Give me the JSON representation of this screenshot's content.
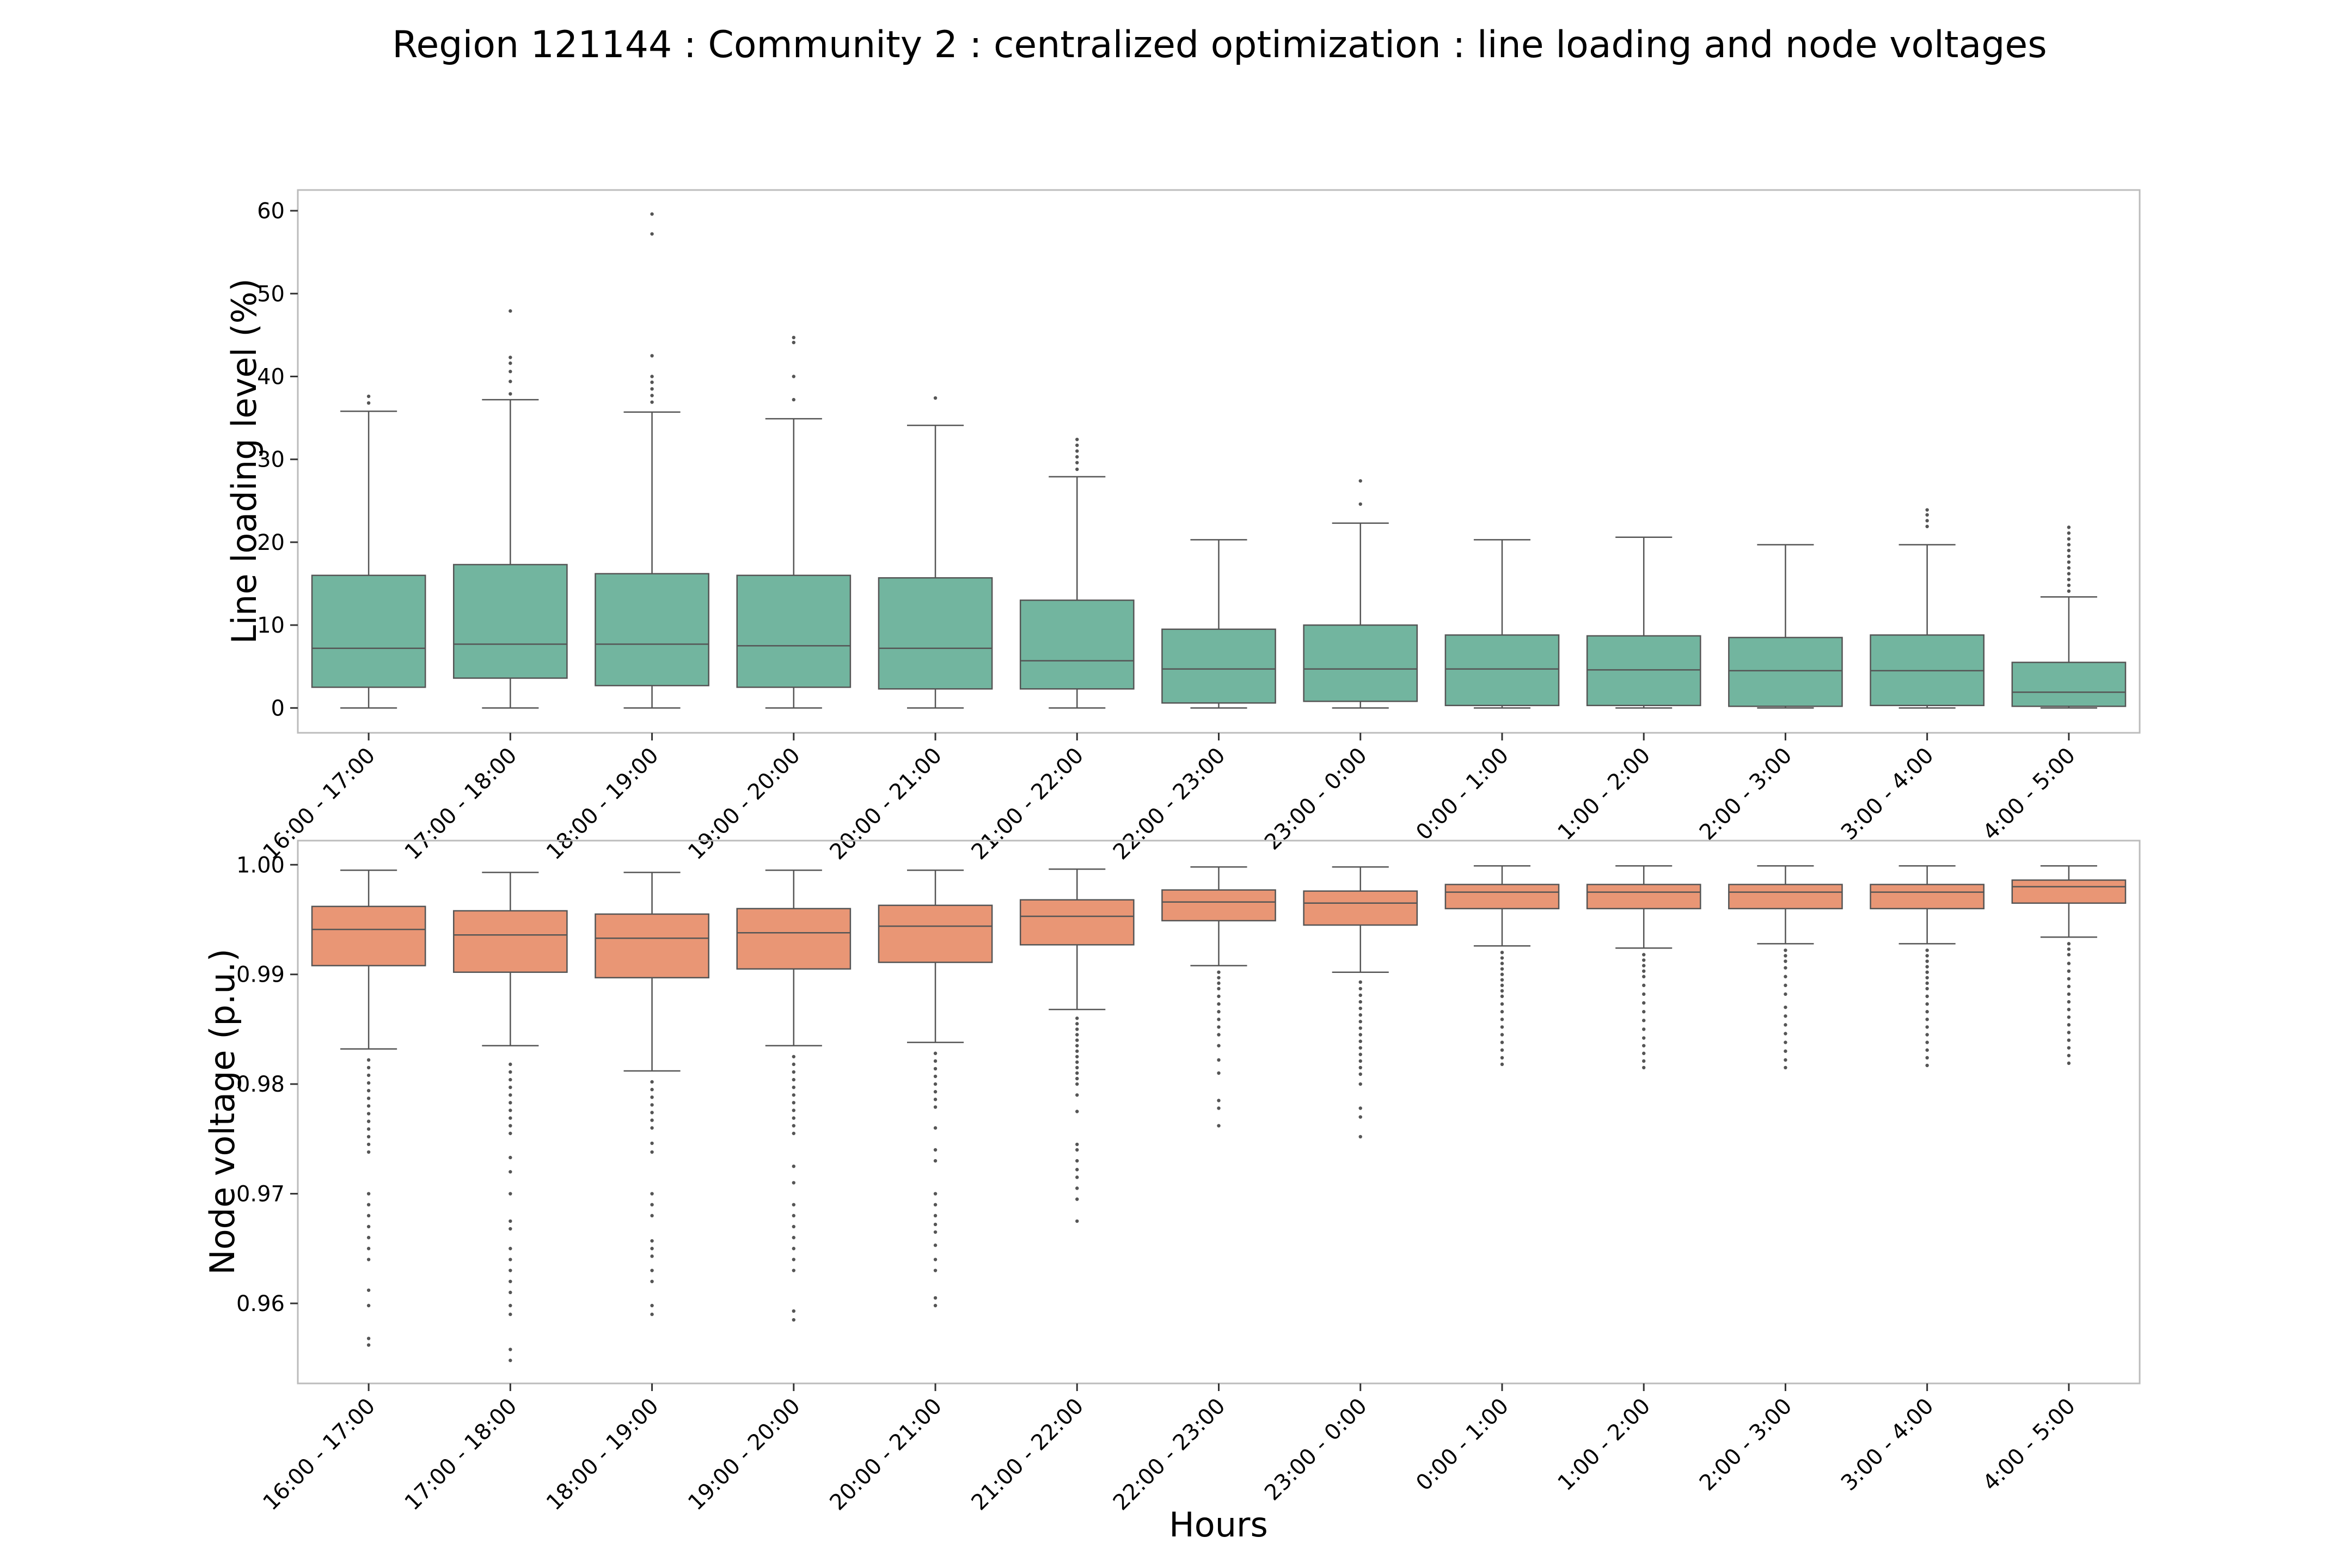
{
  "figure": {
    "title": "Region 121144 : Community 2 : centralized optimization : line loading and node voltages"
  },
  "chart_data": [
    {
      "type": "box",
      "panel": "top",
      "xlabel": "",
      "ylabel": "Line loading level (%)",
      "ylim": [
        -3,
        62.5
      ],
      "yticks": [
        0,
        10,
        20,
        30,
        40,
        50,
        60
      ],
      "ytick_labels": [
        "0",
        "10",
        "20",
        "30",
        "40",
        "50",
        "60"
      ],
      "grid": false,
      "color": "#72b59f",
      "categories": [
        "16:00 - 17:00",
        "17:00 - 18:00",
        "18:00 - 19:00",
        "19:00 - 20:00",
        "20:00 - 21:00",
        "21:00 - 22:00",
        "22:00 - 23:00",
        "23:00 - 0:00",
        "0:00 - 1:00",
        "1:00 - 2:00",
        "2:00 - 3:00",
        "3:00 - 4:00",
        "4:00 - 5:00"
      ],
      "boxes": [
        {
          "whislo": 0,
          "q1": 2.5,
          "med": 7.2,
          "q3": 16.0,
          "whishi": 35.8,
          "fliers": [
            36.8,
            37.6
          ]
        },
        {
          "whislo": 0,
          "q1": 3.6,
          "med": 7.7,
          "q3": 17.3,
          "whishi": 37.2,
          "fliers": [
            37.9,
            39.4,
            40.6,
            41.6,
            42.3,
            47.9
          ]
        },
        {
          "whislo": 0,
          "q1": 2.7,
          "med": 7.7,
          "q3": 16.2,
          "whishi": 35.7,
          "fliers": [
            36.9,
            37.7,
            38.5,
            39.3,
            40.0,
            42.5,
            57.2,
            59.6
          ]
        },
        {
          "whislo": 0,
          "q1": 2.5,
          "med": 7.5,
          "q3": 16.0,
          "whishi": 34.9,
          "fliers": [
            37.2,
            40.0,
            44.1,
            44.7
          ]
        },
        {
          "whislo": 0,
          "q1": 2.3,
          "med": 7.2,
          "q3": 15.7,
          "whishi": 34.1,
          "fliers": [
            37.4
          ]
        },
        {
          "whislo": 0,
          "q1": 2.3,
          "med": 5.7,
          "q3": 13.0,
          "whishi": 27.9,
          "fliers": [
            28.8,
            29.6,
            30.3,
            31.0,
            31.7,
            32.4
          ]
        },
        {
          "whislo": 0,
          "q1": 0.6,
          "med": 4.7,
          "q3": 9.5,
          "whishi": 20.3,
          "fliers": []
        },
        {
          "whislo": 0,
          "q1": 0.8,
          "med": 4.7,
          "q3": 10.0,
          "whishi": 22.3,
          "fliers": [
            24.6,
            27.4
          ]
        },
        {
          "whislo": 0,
          "q1": 0.3,
          "med": 4.7,
          "q3": 8.8,
          "whishi": 20.3,
          "fliers": []
        },
        {
          "whislo": 0,
          "q1": 0.3,
          "med": 4.6,
          "q3": 8.7,
          "whishi": 20.6,
          "fliers": []
        },
        {
          "whislo": 0,
          "q1": 0.2,
          "med": 4.5,
          "q3": 8.5,
          "whishi": 19.7,
          "fliers": []
        },
        {
          "whislo": 0,
          "q1": 0.3,
          "med": 4.5,
          "q3": 8.8,
          "whishi": 19.7,
          "fliers": [
            21.9,
            22.6,
            23.3,
            23.9
          ]
        },
        {
          "whislo": 0,
          "q1": 0.2,
          "med": 1.9,
          "q3": 5.5,
          "whishi": 13.4,
          "fliers": [
            14.1,
            14.8,
            15.5,
            16.2,
            16.9,
            17.6,
            18.3,
            19.0,
            19.7,
            20.4,
            21.1,
            21.8
          ]
        }
      ]
    },
    {
      "type": "box",
      "panel": "bottom",
      "xlabel": "Hours",
      "ylabel": "Node voltage (p.u.)",
      "ylim": [
        0.9527,
        1.0022
      ],
      "yticks": [
        0.96,
        0.97,
        0.98,
        0.99,
        1.0
      ],
      "ytick_labels": [
        "0.96",
        "0.97",
        "0.98",
        "0.99",
        "1.00"
      ],
      "grid": false,
      "color": "#e99675",
      "categories": [
        "16:00 - 17:00",
        "17:00 - 18:00",
        "18:00 - 19:00",
        "19:00 - 20:00",
        "20:00 - 21:00",
        "21:00 - 22:00",
        "22:00 - 23:00",
        "23:00 - 0:00",
        "0:00 - 1:00",
        "1:00 - 2:00",
        "2:00 - 3:00",
        "3:00 - 4:00",
        "4:00 - 5:00"
      ],
      "boxes": [
        {
          "whislo": 0.9832,
          "q1": 0.9908,
          "med": 0.9941,
          "q3": 0.9962,
          "whishi": 0.9995,
          "fliers": [
            0.9822,
            0.9815,
            0.9808,
            0.9801,
            0.9794,
            0.9787,
            0.978,
            0.9773,
            0.9766,
            0.9759,
            0.9752,
            0.9745,
            0.9738,
            0.97,
            0.969,
            0.968,
            0.967,
            0.966,
            0.965,
            0.964,
            0.9612,
            0.9598,
            0.9568,
            0.9562
          ]
        },
        {
          "whislo": 0.9835,
          "q1": 0.9902,
          "med": 0.9936,
          "q3": 0.9958,
          "whishi": 0.9993,
          "fliers": [
            0.9818,
            0.9811,
            0.9804,
            0.9797,
            0.979,
            0.9783,
            0.9776,
            0.9769,
            0.9762,
            0.9755,
            0.9733,
            0.972,
            0.97,
            0.9675,
            0.9668,
            0.965,
            0.964,
            0.963,
            0.962,
            0.961,
            0.9598,
            0.959,
            0.9558,
            0.9548
          ]
        },
        {
          "whislo": 0.9812,
          "q1": 0.9897,
          "med": 0.9933,
          "q3": 0.9955,
          "whishi": 0.9993,
          "fliers": [
            0.9802,
            0.9795,
            0.9788,
            0.9781,
            0.9774,
            0.9767,
            0.976,
            0.9746,
            0.9738,
            0.97,
            0.969,
            0.968,
            0.9657,
            0.965,
            0.9643,
            0.963,
            0.962,
            0.9598,
            0.959
          ]
        },
        {
          "whislo": 0.9835,
          "q1": 0.9905,
          "med": 0.9938,
          "q3": 0.996,
          "whishi": 0.9995,
          "fliers": [
            0.9825,
            0.9818,
            0.9811,
            0.9804,
            0.9797,
            0.979,
            0.9783,
            0.9776,
            0.9769,
            0.9762,
            0.9755,
            0.9725,
            0.971,
            0.969,
            0.968,
            0.967,
            0.966,
            0.965,
            0.964,
            0.963,
            0.9593,
            0.9585
          ]
        },
        {
          "whislo": 0.9838,
          "q1": 0.9911,
          "med": 0.9944,
          "q3": 0.9963,
          "whishi": 0.9995,
          "fliers": [
            0.9828,
            0.9821,
            0.9814,
            0.9807,
            0.98,
            0.9793,
            0.9786,
            0.9779,
            0.976,
            0.974,
            0.973,
            0.97,
            0.969,
            0.968,
            0.9672,
            0.9665,
            0.9653,
            0.964,
            0.963,
            0.9605,
            0.9598
          ]
        },
        {
          "whislo": 0.9868,
          "q1": 0.9927,
          "med": 0.9953,
          "q3": 0.9968,
          "whishi": 0.9996,
          "fliers": [
            0.986,
            0.9855,
            0.985,
            0.9845,
            0.984,
            0.9835,
            0.983,
            0.9825,
            0.982,
            0.9815,
            0.981,
            0.9805,
            0.98,
            0.979,
            0.9775,
            0.9745,
            0.974,
            0.973,
            0.9722,
            0.9715,
            0.9705,
            0.9695,
            0.9675
          ]
        },
        {
          "whislo": 0.9908,
          "q1": 0.9949,
          "med": 0.9966,
          "q3": 0.9977,
          "whishi": 0.9998,
          "fliers": [
            0.9902,
            0.9897,
            0.9892,
            0.9887,
            0.988,
            0.9873,
            0.9866,
            0.9859,
            0.9852,
            0.9845,
            0.9835,
            0.9822,
            0.981,
            0.9785,
            0.9778,
            0.9762
          ]
        },
        {
          "whislo": 0.9902,
          "q1": 0.9945,
          "med": 0.9965,
          "q3": 0.9976,
          "whishi": 0.9998,
          "fliers": [
            0.9893,
            0.9887,
            0.9881,
            0.9875,
            0.9869,
            0.9863,
            0.9857,
            0.9851,
            0.9845,
            0.9839,
            0.9833,
            0.9827,
            0.9821,
            0.9815,
            0.9809,
            0.98,
            0.9778,
            0.977,
            0.9752
          ]
        },
        {
          "whislo": 0.9926,
          "q1": 0.996,
          "med": 0.9975,
          "q3": 0.9982,
          "whishi": 0.9999,
          "fliers": [
            0.992,
            0.9915,
            0.991,
            0.9905,
            0.99,
            0.9895,
            0.989,
            0.9885,
            0.988,
            0.9873,
            0.9866,
            0.9859,
            0.9852,
            0.9845,
            0.9838,
            0.9831,
            0.9824,
            0.9818
          ]
        },
        {
          "whislo": 0.9924,
          "q1": 0.996,
          "med": 0.9975,
          "q3": 0.9982,
          "whishi": 0.9999,
          "fliers": [
            0.9918,
            0.9913,
            0.9908,
            0.9903,
            0.9898,
            0.989,
            0.9882,
            0.9874,
            0.9866,
            0.9858,
            0.985,
            0.9842,
            0.9835,
            0.9828,
            0.9821,
            0.9815
          ]
        },
        {
          "whislo": 0.9928,
          "q1": 0.996,
          "med": 0.9975,
          "q3": 0.9982,
          "whishi": 0.9999,
          "fliers": [
            0.9922,
            0.9917,
            0.9912,
            0.9906,
            0.9898,
            0.989,
            0.9882,
            0.987,
            0.9862,
            0.9854,
            0.9846,
            0.9838,
            0.983,
            0.9822,
            0.9815
          ]
        },
        {
          "whislo": 0.9928,
          "q1": 0.996,
          "med": 0.9975,
          "q3": 0.9982,
          "whishi": 0.9999,
          "fliers": [
            0.9922,
            0.9917,
            0.9912,
            0.9907,
            0.9902,
            0.9897,
            0.9892,
            0.9887,
            0.988,
            0.9873,
            0.9866,
            0.9859,
            0.9852,
            0.9845,
            0.9838,
            0.9831,
            0.9824,
            0.9817
          ]
        },
        {
          "whislo": 0.9934,
          "q1": 0.9965,
          "med": 0.998,
          "q3": 0.9986,
          "whishi": 0.9999,
          "fliers": [
            0.9928,
            0.9923,
            0.9918,
            0.991,
            0.9903,
            0.9896,
            0.9889,
            0.9882,
            0.9875,
            0.9868,
            0.9861,
            0.9854,
            0.9847,
            0.984,
            0.9833,
            0.9826,
            0.9819
          ]
        }
      ]
    }
  ]
}
